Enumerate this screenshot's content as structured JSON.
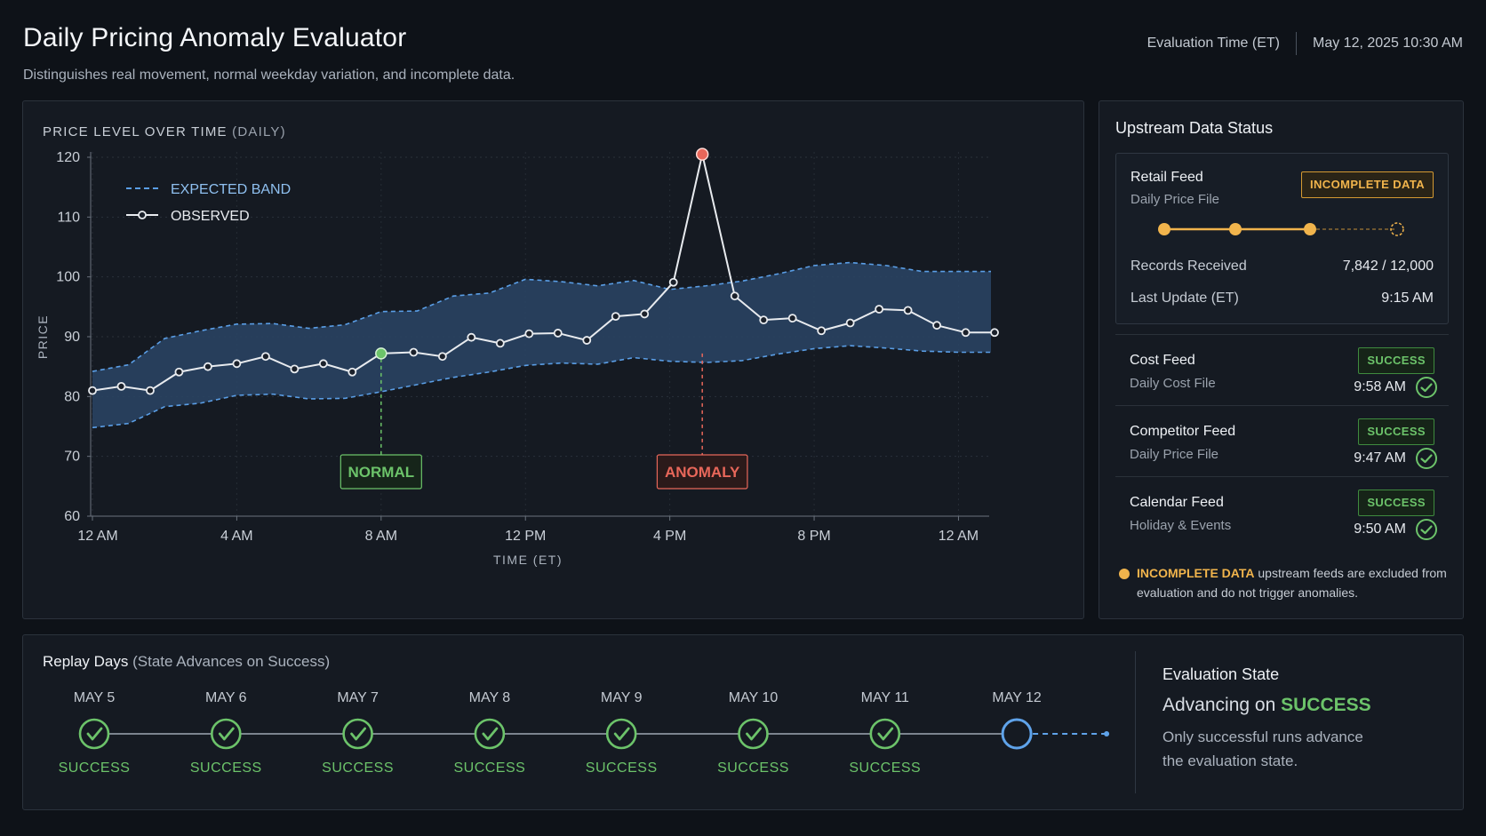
{
  "header": {
    "title": "Daily Pricing Anomaly Evaluator",
    "subtitle": "Distinguishes real movement, normal weekday variation, and incomplete data.",
    "eval_time_label": "Evaluation Time (ET)",
    "eval_time_value": "May 12, 2025 10:30 AM"
  },
  "chart_panel": {
    "title": "PRICE LEVEL OVER TIME",
    "title_suffix": "(DAILY)"
  },
  "colors": {
    "band_fill": "#2a4565",
    "band_line": "#5a9ee6",
    "observed": "#e8ebef",
    "normal": "#6cc36a",
    "anomaly": "#e8675a",
    "warning": "#f1b44c",
    "accent_blue": "#5fa3ea"
  },
  "chart_data": {
    "type": "line",
    "xlabel": "TIME (ET)",
    "ylabel": "PRICE",
    "ylim": [
      60,
      120
    ],
    "yticks": [
      60,
      70,
      80,
      90,
      100,
      110,
      120
    ],
    "x_tick_labels": [
      "12 AM",
      "4 AM",
      "8 AM",
      "12 PM",
      "4 PM",
      "8 PM",
      "12 AM"
    ],
    "x_tick_hours": [
      0,
      4,
      8,
      12,
      16,
      20,
      24
    ],
    "xlim_hours": [
      0,
      24.9
    ],
    "legend": [
      {
        "name": "EXPECTED BAND",
        "style": "dashed"
      },
      {
        "name": "OBSERVED",
        "style": "line-marker"
      }
    ],
    "band": {
      "x_hours": [
        0,
        1,
        2,
        3,
        4,
        5,
        6,
        7,
        8,
        9,
        10,
        11,
        12,
        13,
        14,
        15,
        16,
        17,
        18,
        19,
        20,
        21,
        22,
        23,
        24,
        24.9
      ],
      "upper": [
        84.2,
        85.3,
        89.7,
        91.0,
        92.1,
        92.2,
        91.4,
        92.0,
        94.2,
        94.3,
        96.8,
        97.3,
        99.6,
        99.2,
        98.5,
        99.4,
        97.9,
        98.5,
        99.3,
        100.5,
        101.9,
        102.4,
        101.9,
        100.9,
        100.9,
        100.9
      ],
      "lower": [
        74.8,
        75.5,
        78.3,
        78.9,
        80.2,
        80.4,
        79.6,
        79.7,
        80.8,
        82.0,
        83.2,
        84.1,
        85.2,
        85.6,
        85.4,
        86.5,
        85.9,
        85.7,
        86.0,
        87.1,
        88.0,
        88.5,
        88.1,
        87.6,
        87.4,
        87.4
      ]
    },
    "observed": {
      "x_hours": [
        0,
        0.8,
        1.6,
        2.4,
        3.2,
        4.0,
        4.8,
        5.6,
        6.4,
        7.2,
        8.0,
        8.9,
        9.7,
        10.5,
        11.3,
        12.1,
        12.9,
        13.7,
        14.5,
        15.3,
        16.1,
        16.9,
        17.8,
        18.6,
        19.4,
        20.2,
        21.0,
        21.8,
        22.6,
        23.4,
        24.2,
        25.0
      ],
      "values": [
        81.0,
        81.7,
        81.0,
        84.1,
        85.0,
        85.5,
        86.7,
        84.6,
        85.5,
        84.1,
        87.2,
        87.4,
        86.7,
        89.9,
        88.9,
        90.5,
        90.6,
        89.4,
        93.4,
        93.8,
        99.1,
        120.5,
        96.8,
        92.8,
        93.1,
        91.0,
        92.3,
        94.6,
        94.4,
        91.9,
        90.7,
        90.7
      ],
      "normal_index": 10,
      "anomaly_index": 21
    },
    "annotations": [
      {
        "label": "NORMAL",
        "index": 10
      },
      {
        "label": "ANOMALY",
        "index": 21
      }
    ]
  },
  "status_panel": {
    "title": "Upstream Data Status",
    "retail": {
      "name": "Retail Feed",
      "sub": "Daily Price File",
      "badge": "INCOMPLETE DATA",
      "progress_steps_done": 3,
      "progress_steps_total": 4,
      "records_label": "Records Received",
      "records_value": "7,842 / 12,000",
      "update_label": "Last Update (ET)",
      "update_value": "9:15 AM"
    },
    "feeds": [
      {
        "name": "Cost Feed",
        "sub": "Daily Cost File",
        "badge": "SUCCESS",
        "time": "9:58 AM"
      },
      {
        "name": "Competitor Feed",
        "sub": "Daily Price File",
        "badge": "SUCCESS",
        "time": "9:47 AM"
      },
      {
        "name": "Calendar Feed",
        "sub": "Holiday & Events",
        "badge": "SUCCESS",
        "time": "9:50 AM"
      }
    ],
    "note_highlight": "INCOMPLETE DATA",
    "note_text": "upstream feeds are excluded from evaluation and do not trigger anomalies."
  },
  "replay": {
    "title": "Replay Days",
    "title_suffix": "(State Advances on Success)",
    "days": [
      {
        "label": "MAY 5",
        "status": "SUCCESS"
      },
      {
        "label": "MAY 6",
        "status": "SUCCESS"
      },
      {
        "label": "MAY 7",
        "status": "SUCCESS"
      },
      {
        "label": "MAY 8",
        "status": "SUCCESS"
      },
      {
        "label": "MAY 9",
        "status": "SUCCESS"
      },
      {
        "label": "MAY 10",
        "status": "SUCCESS"
      },
      {
        "label": "MAY 11",
        "status": "SUCCESS"
      },
      {
        "label": "MAY 12",
        "status": ""
      }
    ],
    "current_index": 7,
    "state_title": "Evaluation State",
    "state_prefix": "Advancing on",
    "state_keyword": "SUCCESS",
    "state_desc": "Only successful runs advance the evaluation state."
  }
}
